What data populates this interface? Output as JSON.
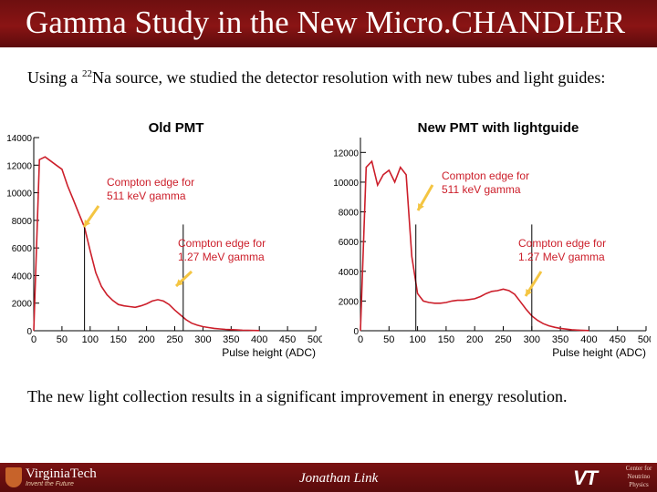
{
  "slide": {
    "title": "Gamma Study in the New Micro.CHANDLER",
    "intro_before": "Using a ",
    "intro_sup": "22",
    "intro_after": "Na source, we studied the detector resolution with new tubes and light guides:",
    "conclusion": "The new light collection results in a significant improvement in energy resolution."
  },
  "footer": {
    "university": "VirginiaTech",
    "tagline": "Invent the Future",
    "presenter": "Jonathan Link",
    "mark": "VT",
    "center": [
      "Center for",
      "Neutrino",
      "Physics"
    ]
  },
  "colors": {
    "accent": "#8a1414",
    "histogram": "#cc1e2a",
    "arrow": "#f4c542"
  },
  "chart_data": [
    {
      "type": "line",
      "title": "Old PMT",
      "xlabel": "Pulse height (ADC)",
      "ylabel": "",
      "xlim": [
        0,
        500
      ],
      "ylim": [
        0,
        14000
      ],
      "xticks": [
        0,
        50,
        100,
        150,
        200,
        250,
        300,
        350,
        400,
        450,
        500
      ],
      "yticks": [
        0,
        2000,
        4000,
        6000,
        8000,
        10000,
        12000,
        14000
      ],
      "x": [
        0,
        10,
        20,
        30,
        40,
        50,
        60,
        70,
        80,
        90,
        100,
        110,
        120,
        130,
        140,
        150,
        160,
        170,
        180,
        190,
        200,
        210,
        220,
        230,
        240,
        250,
        260,
        270,
        280,
        290,
        300,
        310,
        320,
        330,
        340,
        350,
        360,
        370,
        380,
        390,
        400
      ],
      "y": [
        0,
        12400,
        12600,
        12300,
        12000,
        11700,
        10500,
        9500,
        8500,
        7500,
        5800,
        4200,
        3200,
        2600,
        2200,
        1900,
        1800,
        1750,
        1700,
        1800,
        1950,
        2150,
        2250,
        2150,
        1900,
        1500,
        1150,
        800,
        550,
        400,
        300,
        230,
        170,
        130,
        100,
        80,
        60,
        40,
        30,
        20,
        10
      ],
      "markers": [
        90,
        265
      ],
      "annotations": [
        {
          "line1": "Compton edge for",
          "line2": "511 keV gamma"
        },
        {
          "line1": "Compton edge for",
          "line2": "1.27 MeV gamma"
        }
      ]
    },
    {
      "type": "line",
      "title": "New PMT with lightguide",
      "xlabel": "Pulse height (ADC)",
      "ylabel": "",
      "xlim": [
        0,
        500
      ],
      "ylim": [
        0,
        13000
      ],
      "xticks": [
        0,
        50,
        100,
        150,
        200,
        250,
        300,
        350,
        400,
        450,
        500
      ],
      "yticks": [
        0,
        2000,
        4000,
        6000,
        8000,
        10000,
        12000
      ],
      "x": [
        0,
        10,
        20,
        30,
        40,
        50,
        60,
        70,
        80,
        90,
        100,
        110,
        120,
        130,
        140,
        150,
        160,
        170,
        180,
        190,
        200,
        210,
        220,
        230,
        240,
        250,
        260,
        270,
        280,
        290,
        300,
        310,
        320,
        330,
        340,
        350,
        360,
        370,
        380,
        390,
        400
      ],
      "y": [
        0,
        11000,
        11400,
        9800,
        10500,
        10800,
        10000,
        11000,
        10500,
        5000,
        2500,
        2000,
        1900,
        1850,
        1850,
        1900,
        2000,
        2050,
        2050,
        2100,
        2150,
        2300,
        2500,
        2650,
        2700,
        2800,
        2700,
        2450,
        1950,
        1450,
        1000,
        700,
        480,
        330,
        230,
        160,
        110,
        70,
        40,
        25,
        10
      ],
      "markers": [
        97,
        300
      ],
      "annotations": [
        {
          "line1": "Compton edge for",
          "line2": "511 keV gamma"
        },
        {
          "line1": "Compton edge for",
          "line2": "1.27 MeV gamma"
        }
      ]
    }
  ]
}
